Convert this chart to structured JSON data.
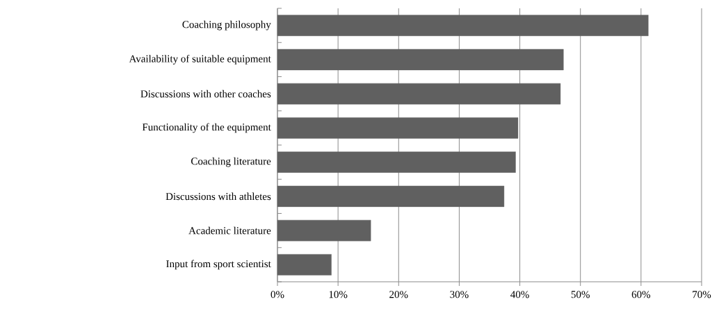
{
  "chart_data": {
    "type": "bar",
    "orientation": "horizontal",
    "categories": [
      "Coaching philosophy",
      "Availability of suitable equipment",
      "Discussions with other coaches",
      "Functionality of the equipment",
      "Coaching literature",
      "Discussions with athletes",
      "Academic literature",
      "Input from sport scientist"
    ],
    "values": [
      61.2,
      47.2,
      46.7,
      39.7,
      39.3,
      37.4,
      15.4,
      8.9
    ],
    "color": "#606060",
    "xlim": [
      0,
      70
    ],
    "xticks": [
      {
        "value": 0,
        "label": "0%"
      },
      {
        "value": 10,
        "label": "10%"
      },
      {
        "value": 20,
        "label": "20%"
      },
      {
        "value": 30,
        "label": "30%"
      },
      {
        "value": 40,
        "label": "40%"
      },
      {
        "value": 50,
        "label": "50%"
      },
      {
        "value": 60,
        "label": "60%"
      },
      {
        "value": 70,
        "label": "70%"
      }
    ],
    "grid": "x"
  }
}
